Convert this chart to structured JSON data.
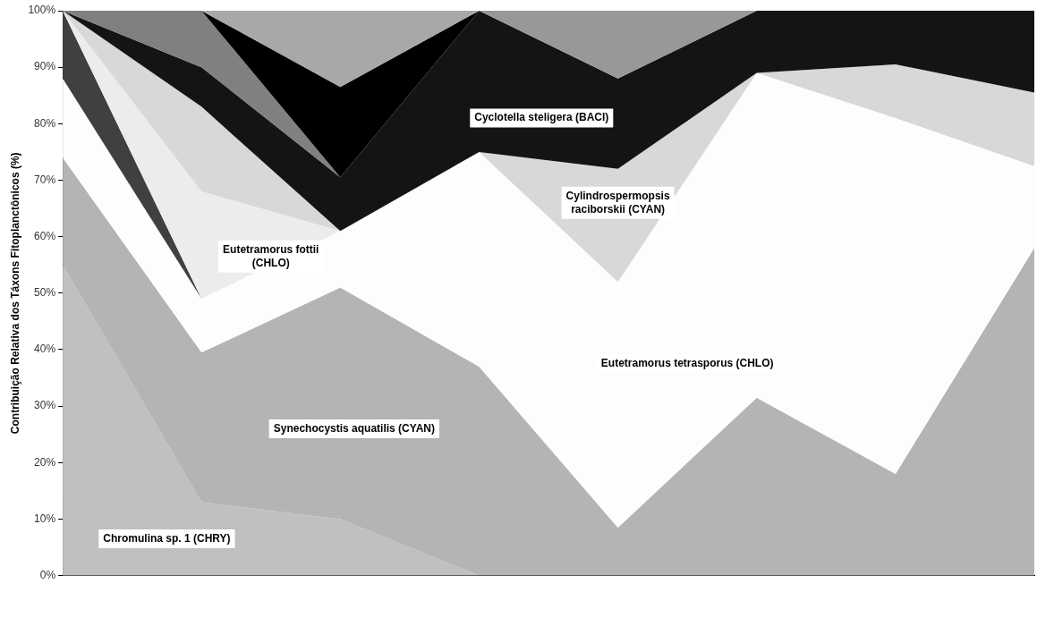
{
  "chart_data": {
    "type": "area",
    "stacked": true,
    "ylabel": "Contribuição Relativa dos Táxons Fitoplanctônicos (%)",
    "categories": [
      null,
      null,
      null,
      null,
      null,
      null,
      null,
      null
    ],
    "ylim": [
      0,
      100
    ],
    "yticks": [
      {
        "value": 0,
        "label": "0%"
      },
      {
        "value": 10,
        "label": "10%"
      },
      {
        "value": 20,
        "label": "20%"
      },
      {
        "value": 30,
        "label": "30%"
      },
      {
        "value": 40,
        "label": "40%"
      },
      {
        "value": 50,
        "label": "50%"
      },
      {
        "value": 60,
        "label": "60%"
      },
      {
        "value": 70,
        "label": "70%"
      },
      {
        "value": 80,
        "label": "80%"
      },
      {
        "value": 90,
        "label": "90%"
      },
      {
        "value": 100,
        "label": "100%"
      }
    ],
    "grid": false,
    "legend": false,
    "series": [
      {
        "name": "Chromulina sp. 1 (CHRY)",
        "color": "#c0c0c0",
        "values": [
          55,
          13,
          10,
          0,
          null,
          null,
          null,
          null
        ]
      },
      {
        "name": "Synechocystis aquatilis (CYAN)",
        "color": "#b4b4b4",
        "values": [
          19,
          26.5,
          41,
          37,
          8.5,
          31.5,
          18,
          58
        ]
      },
      {
        "name": "Eutetramorus tetrasporus (CHLO)",
        "color": "#fdfdfd",
        "values": [
          14,
          9.5,
          10,
          38,
          43.5,
          57.5,
          63,
          14.5
        ]
      },
      {
        "color": "#404040",
        "values": [
          12,
          0,
          null,
          null,
          null,
          null,
          null,
          null
        ]
      },
      {
        "name": "Eutetramorus fottii (CHLO)",
        "color": "#ececec",
        "values": [
          0,
          19,
          0,
          null,
          null,
          null,
          null,
          null
        ]
      },
      {
        "name": "Cylindrospermopsis raciborskii (CYAN)",
        "color": "#d8d8d8",
        "values": [
          0,
          15,
          0,
          0,
          20,
          0,
          9.5,
          13
        ]
      },
      {
        "name": "Cyclotella steligera (BACI)",
        "color": "#141414",
        "values": [
          0,
          7,
          9.5,
          25,
          16,
          11,
          9.5,
          14.5
        ]
      },
      {
        "color": "#808080",
        "values": [
          0,
          10,
          0,
          null,
          null,
          null,
          null,
          null
        ]
      },
      {
        "color": "#000000",
        "values": [
          null,
          0,
          16,
          0,
          null,
          null,
          null,
          null
        ]
      },
      {
        "color": "#a8a8a8",
        "values": [
          null,
          0,
          13.5,
          0,
          null,
          null,
          null,
          null
        ]
      },
      {
        "color": "#989898",
        "values": [
          null,
          null,
          null,
          0,
          12,
          0,
          null,
          null
        ]
      }
    ]
  }
}
